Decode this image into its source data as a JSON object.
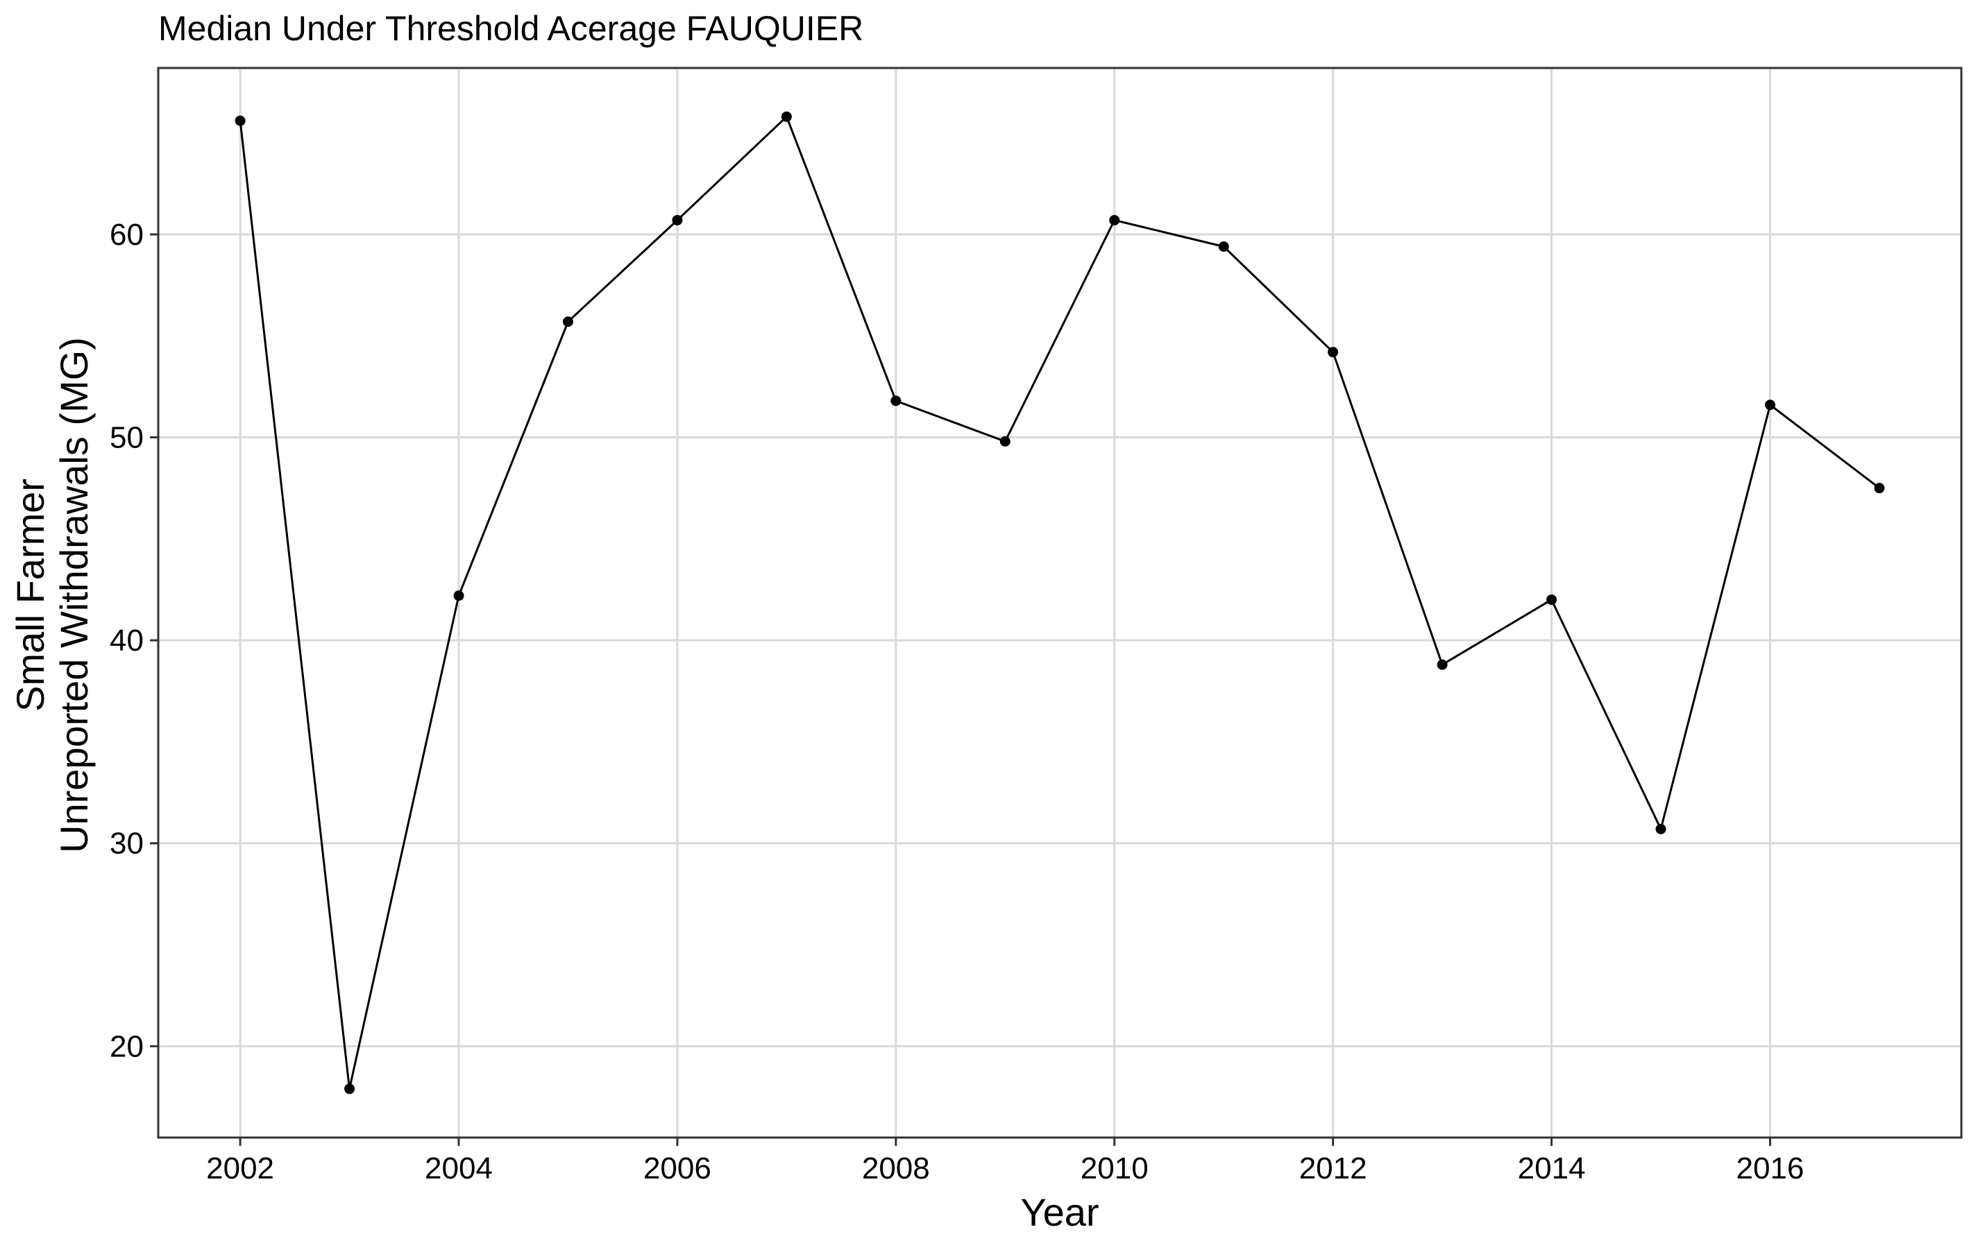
{
  "chart_data": {
    "type": "line",
    "title": "Median Under Threshold Acerage FAUQUIER",
    "xlabel": "Year",
    "ylabel_lines": [
      "Small Farmer",
      "Unreported Withdrawals (MG)"
    ],
    "x": [
      2002,
      2003,
      2004,
      2005,
      2006,
      2007,
      2008,
      2009,
      2010,
      2011,
      2012,
      2013,
      2014,
      2015,
      2016,
      2017
    ],
    "series": [
      {
        "values": [
          65.6,
          17.9,
          42.2,
          55.7,
          60.7,
          65.8,
          51.8,
          49.8,
          60.7,
          59.4,
          54.2,
          38.8,
          42.0,
          30.7,
          51.6,
          47.5
        ]
      }
    ],
    "xticks": [
      2002,
      2004,
      2006,
      2008,
      2010,
      2012,
      2014,
      2016
    ],
    "xtick_labels": [
      "2002",
      "2004",
      "2006",
      "2008",
      "2010",
      "2012",
      "2014",
      "2016"
    ],
    "yticks": [
      20,
      30,
      40,
      50,
      60
    ],
    "ytick_labels": [
      "20",
      "30",
      "40",
      "50",
      "60"
    ],
    "xlim": [
      2001.25,
      2017.75
    ],
    "ylim": [
      15.5,
      68.2
    ],
    "grid": true,
    "colors": {
      "line": "#000000",
      "points": "#000000",
      "grid": "#d9d9d9",
      "panel_border": "#333333",
      "background": "#ffffff"
    }
  }
}
